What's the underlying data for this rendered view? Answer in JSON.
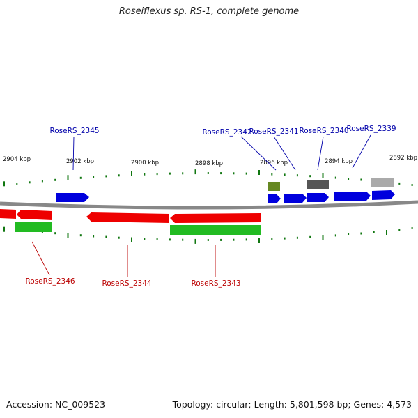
{
  "title": "Roseiflexus sp. RS-1, complete genome",
  "footer": {
    "accession": "Accession: NC_009523",
    "summary": "Topology: circular; Length: 5,801,598 bp; Genes: 4,573"
  },
  "ruler": {
    "labels": [
      "2904 kbp",
      "2902 kbp",
      "2900 kbp",
      "2898 kbp",
      "2896 kbp",
      "2894 kbp",
      "2892 kbp"
    ]
  },
  "colors": {
    "forward_gene": "#0000dd",
    "reverse_gene": "#ee0000",
    "rna_green": "#22bb22",
    "olive": "#668822",
    "dark_gray": "#555555",
    "light_gray": "#aaaaaa",
    "backbone": "#888888",
    "tick": "#117711",
    "label_blue": "#0000aa",
    "label_red": "#bb0000"
  },
  "gene_labels": {
    "top": [
      "RoseRS_2345",
      "RoseRS_2342",
      "RoseRS_2341",
      "RoseRS_2340",
      "RoseRS_2339"
    ],
    "bottom": [
      "RoseRS_2346",
      "RoseRS_2344",
      "RoseRS_2343"
    ]
  }
}
